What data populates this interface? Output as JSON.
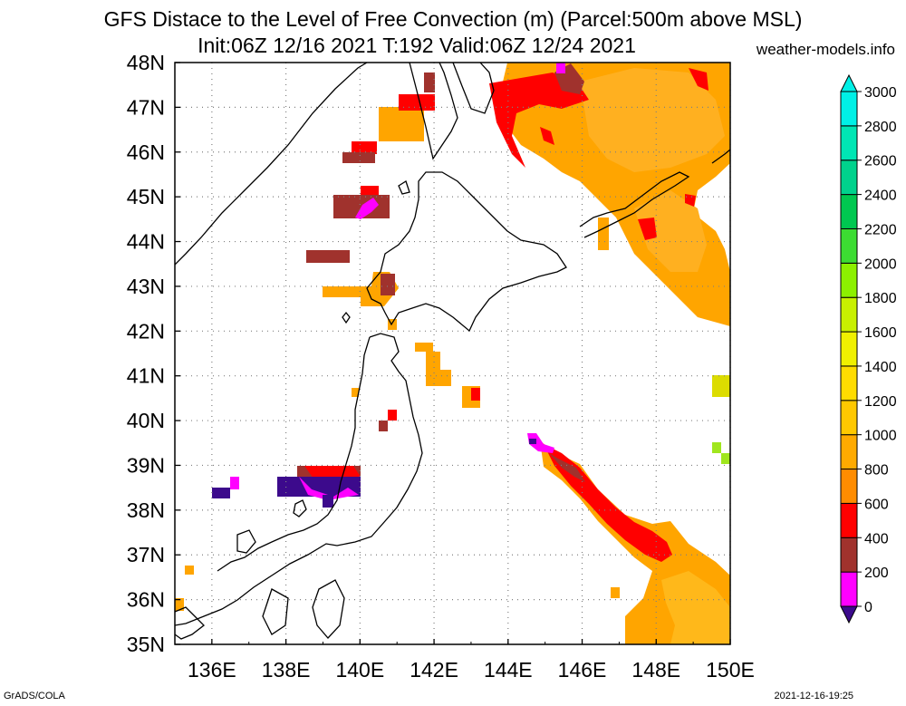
{
  "title": {
    "line1": "GFS Distace to the Level of Free Convection (m) (Parcel:500m above MSL)",
    "line2": "Init:06Z 12/16 2021 T:192 Valid:06Z 12/24 2021",
    "site": "weather-models.info"
  },
  "map": {
    "lon_range": [
      135,
      150
    ],
    "lat_range": [
      35,
      48
    ],
    "x_ticks": [
      "136E",
      "138E",
      "140E",
      "142E",
      "144E",
      "146E",
      "148E",
      "150E"
    ],
    "y_ticks": [
      "35N",
      "36N",
      "37N",
      "38N",
      "39N",
      "40N",
      "41N",
      "42N",
      "43N",
      "44N",
      "45N",
      "46N",
      "47N",
      "48N"
    ],
    "grid": "dotted"
  },
  "colorbar": {
    "labels": [
      "0",
      "200",
      "400",
      "600",
      "800",
      "1000",
      "1200",
      "1400",
      "1600",
      "1800",
      "2000",
      "2200",
      "2400",
      "2600",
      "2800",
      "3000"
    ],
    "colors": [
      "#3c0a8c",
      "#ff00ff",
      "#a0322d",
      "#ff0000",
      "#ff8c00",
      "#ffaa00",
      "#ffc800",
      "#ffdc00",
      "#f0f000",
      "#c8f000",
      "#8cf000",
      "#3cdc32",
      "#00c850",
      "#00d28c",
      "#00e6b4",
      "#00f0e6"
    ]
  },
  "footer": {
    "left": "GrADS/COLA",
    "right": "2021-12-16-19:25"
  }
}
